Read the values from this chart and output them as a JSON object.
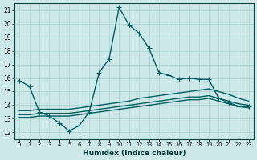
{
  "xlabel": "Humidex (Indice chaleur)",
  "bg_color": "#cce8e8",
  "grid_color": "#b0d4d4",
  "line_color": "#006060",
  "xlim": [
    -0.5,
    23.5
  ],
  "ylim": [
    11.5,
    21.5
  ],
  "xticks": [
    0,
    1,
    2,
    3,
    4,
    5,
    6,
    7,
    8,
    9,
    10,
    11,
    12,
    13,
    14,
    15,
    16,
    17,
    18,
    19,
    20,
    21,
    22,
    23
  ],
  "yticks": [
    12,
    13,
    14,
    15,
    16,
    17,
    18,
    19,
    20,
    21
  ],
  "series": [
    {
      "x": [
        0,
        1,
        2,
        3,
        4,
        5,
        6,
        7,
        8,
        9,
        10,
        11,
        12,
        13,
        14,
        15,
        16,
        17,
        18,
        19,
        20,
        21,
        22,
        23
      ],
      "y": [
        15.8,
        15.4,
        13.5,
        13.2,
        12.7,
        12.1,
        12.5,
        13.5,
        16.4,
        17.4,
        21.2,
        19.9,
        19.3,
        18.2,
        16.4,
        16.2,
        15.9,
        16.0,
        15.9,
        15.9,
        14.5,
        14.2,
        13.9,
        13.9
      ],
      "linestyle": "-",
      "marker": "+",
      "markersize": 4,
      "linewidth": 1.0
    },
    {
      "x": [
        0,
        1,
        2,
        3,
        4,
        5,
        6,
        7,
        8,
        9,
        10,
        11,
        12,
        13,
        14,
        15,
        16,
        17,
        18,
        19,
        20,
        21,
        22,
        23
      ],
      "y": [
        13.1,
        13.1,
        13.2,
        13.2,
        13.2,
        13.2,
        13.3,
        13.4,
        13.5,
        13.6,
        13.7,
        13.8,
        13.9,
        14.0,
        14.1,
        14.2,
        14.3,
        14.4,
        14.4,
        14.5,
        14.3,
        14.1,
        13.9,
        13.8
      ],
      "linestyle": "-",
      "marker": null,
      "markersize": 0,
      "linewidth": 1.0
    },
    {
      "x": [
        0,
        1,
        2,
        3,
        4,
        5,
        6,
        7,
        8,
        9,
        10,
        11,
        12,
        13,
        14,
        15,
        16,
        17,
        18,
        19,
        20,
        21,
        22,
        23
      ],
      "y": [
        13.3,
        13.3,
        13.4,
        13.4,
        13.4,
        13.4,
        13.5,
        13.6,
        13.7,
        13.8,
        13.9,
        14.0,
        14.1,
        14.2,
        14.3,
        14.4,
        14.5,
        14.6,
        14.6,
        14.7,
        14.5,
        14.3,
        14.1,
        14.0
      ],
      "linestyle": "-",
      "marker": null,
      "markersize": 0,
      "linewidth": 1.0
    },
    {
      "x": [
        0,
        1,
        2,
        3,
        4,
        5,
        6,
        7,
        8,
        9,
        10,
        11,
        12,
        13,
        14,
        15,
        16,
        17,
        18,
        19,
        20,
        21,
        22,
        23
      ],
      "y": [
        13.6,
        13.6,
        13.7,
        13.7,
        13.7,
        13.7,
        13.8,
        13.9,
        14.0,
        14.1,
        14.2,
        14.3,
        14.5,
        14.6,
        14.7,
        14.8,
        14.9,
        15.0,
        15.1,
        15.2,
        15.0,
        14.8,
        14.5,
        14.3
      ],
      "linestyle": "-",
      "marker": null,
      "markersize": 0,
      "linewidth": 1.0
    }
  ]
}
